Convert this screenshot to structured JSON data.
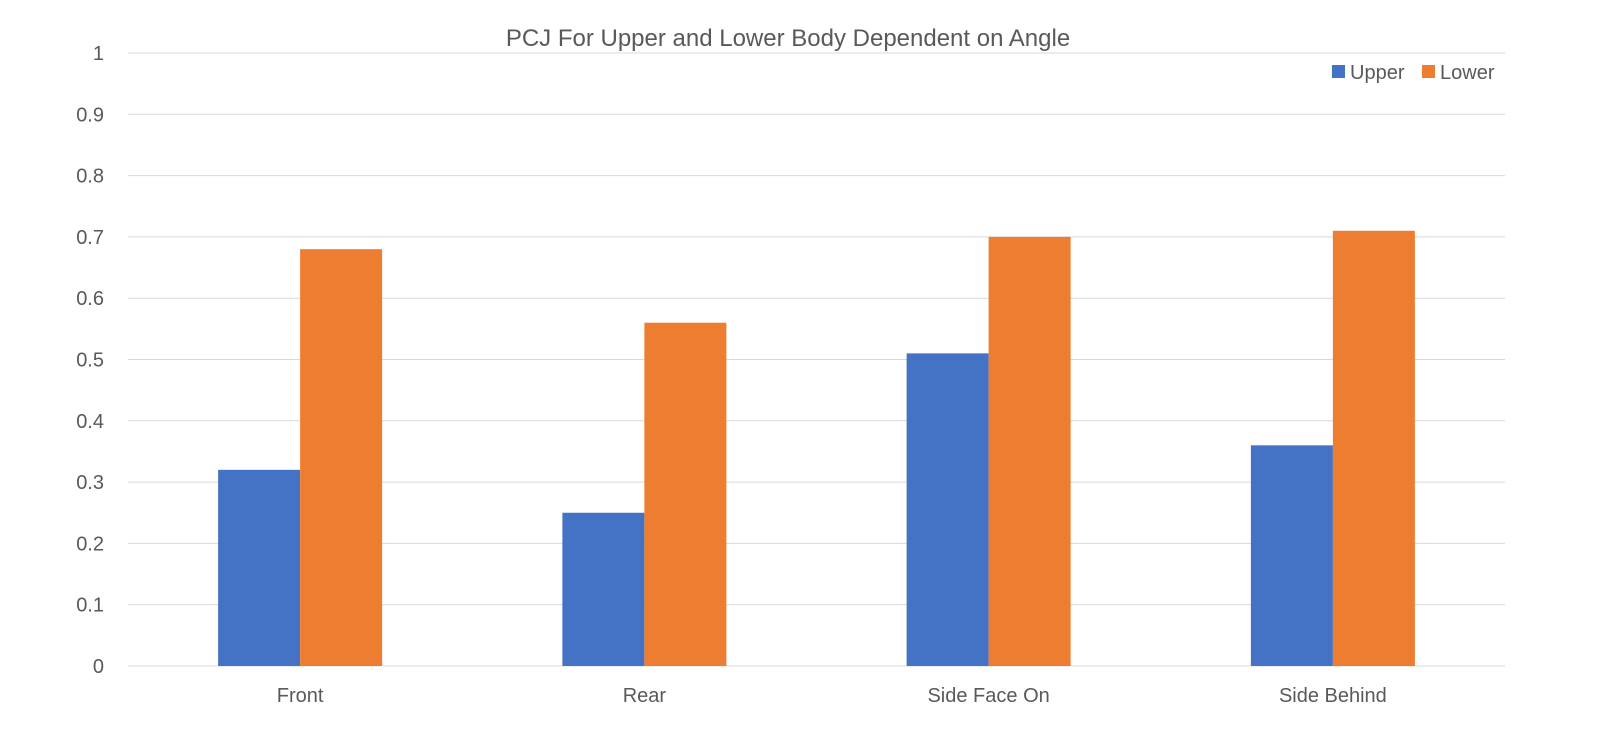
{
  "chart_data": {
    "type": "bar",
    "title": "PCJ For Upper and Lower Body Dependent on Angle",
    "xlabel": "",
    "ylabel": "",
    "categories": [
      "Front",
      "Rear",
      "Side Face On",
      "Side Behind"
    ],
    "series": [
      {
        "name": "Upper",
        "color": "#4472c4",
        "values": [
          0.32,
          0.25,
          0.51,
          0.36
        ]
      },
      {
        "name": "Lower",
        "color": "#ed7d31",
        "values": [
          0.68,
          0.56,
          0.7,
          0.71
        ]
      }
    ],
    "ylim": [
      0,
      1
    ],
    "yticks": [
      "0",
      "0.1",
      "0.2",
      "0.3",
      "0.4",
      "0.5",
      "0.6",
      "0.7",
      "0.8",
      "0.9",
      "1"
    ],
    "grid": true,
    "legend_position": "top-right"
  }
}
